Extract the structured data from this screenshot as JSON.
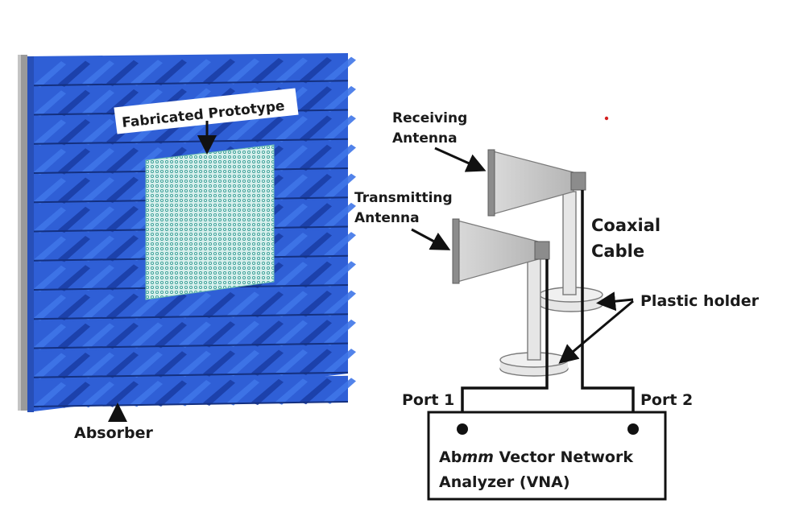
{
  "labels": {
    "prototype": "Fabricated Prototype",
    "absorber": "Absorber",
    "receiving_line1": "Receiving",
    "receiving_line2": "Antenna",
    "transmitting_line1": "Transmitting",
    "transmitting_line2": "Antenna",
    "coaxial_line1": "Coaxial",
    "coaxial_line2": "Cable",
    "plastic_holder": "Plastic holder",
    "port1": "Port 1",
    "port2": "Port 2",
    "vna_line1_prefix": "Ab",
    "vna_line1_italic": "mm",
    "vna_line1_suffix": " Vector Network",
    "vna_line2": "Analyzer (VNA)"
  },
  "colors": {
    "absorber_face": "#2f5fd6",
    "absorber_wedge_dark": "#1b3ea6",
    "absorber_wedge_light": "#3f76e8",
    "absorber_backplate": "#9a9a9a",
    "prototype_fill": "#bfe3df",
    "prototype_grid": "#3a9f96",
    "horn_fill": "#c8c8c8",
    "horn_flange": "#8c8c8c",
    "stand_fill": "#e6e6e6",
    "cable": "#111111",
    "text": "#1a1a1a"
  },
  "icons": [
    "arrow-icon",
    "horn-antenna-icon",
    "port-connector-icon"
  ]
}
